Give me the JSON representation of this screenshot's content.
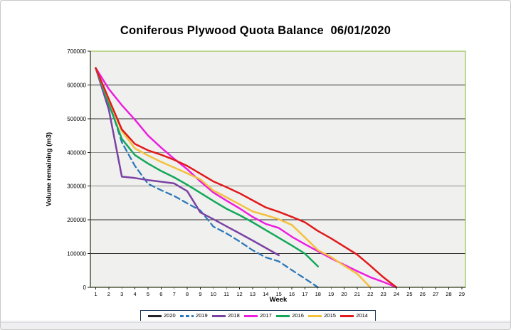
{
  "window": {
    "background": "#ffffff",
    "plot_background": "#f0f0ee",
    "plot_border_color": "#a5c964",
    "axis_color": "#1a1a1a",
    "gridline_color": "#2a2a2a",
    "legend_border_color": "#16365c"
  },
  "chart_data": {
    "type": "line",
    "title": "Coniferous Plywood Quota Balance  06/01/2020",
    "xlabel": "Week",
    "ylabel": "Volume remaining (m3)",
    "xlim": [
      0.5,
      29.5
    ],
    "ylim": [
      0,
      700000
    ],
    "y_tick_step": 100000,
    "y_ticks": [
      0,
      100000,
      200000,
      300000,
      400000,
      500000,
      600000,
      700000
    ],
    "x_ticks": [
      1,
      2,
      3,
      4,
      5,
      6,
      7,
      8,
      9,
      10,
      11,
      12,
      13,
      14,
      15,
      16,
      17,
      18,
      19,
      20,
      21,
      22,
      23,
      24,
      25,
      26,
      27,
      28,
      29
    ],
    "grid": "horizontal",
    "legend_position": "bottom",
    "x_is_week_starting_at": 1,
    "series": [
      {
        "name": "2020",
        "color": "#23252b",
        "dash": "solid",
        "values": [
          650000
        ]
      },
      {
        "name": "2019",
        "color": "#2e79b9",
        "dash": "dashed",
        "values": [
          650000,
          550000,
          430000,
          360000,
          307000,
          288000,
          271000,
          249000,
          228000,
          180000,
          160000,
          136000,
          110000,
          89000,
          77000,
          51000,
          26000,
          0
        ]
      },
      {
        "name": "2018",
        "color": "#7a42a4",
        "dash": "solid",
        "values": [
          650000,
          527000,
          328000,
          324000,
          318000,
          313000,
          308000,
          285000,
          222000,
          202000,
          181000,
          160000,
          139000,
          117000,
          95000
        ]
      },
      {
        "name": "2017",
        "color": "#ed1ee0",
        "dash": "solid",
        "values": [
          650000,
          588000,
          540000,
          497000,
          450000,
          414000,
          381000,
          350000,
          314000,
          281000,
          257000,
          234000,
          209000,
          188000,
          176000,
          150000,
          128000,
          107000,
          86000,
          67000,
          48000,
          30000,
          16000,
          0
        ]
      },
      {
        "name": "2016",
        "color": "#14a75a",
        "dash": "solid",
        "values": [
          650000,
          543000,
          440000,
          392000,
          367000,
          345000,
          326000,
          304000,
          280000,
          256000,
          233000,
          214000,
          193000,
          170000,
          147000,
          124000,
          100000,
          62000
        ]
      },
      {
        "name": "2015",
        "color": "#f3c13f",
        "dash": "solid",
        "values": [
          650000,
          556000,
          463000,
          412000,
          391000,
          372000,
          355000,
          338000,
          320000,
          287000,
          267000,
          246000,
          225000,
          214000,
          202000,
          185000,
          148000,
          110000,
          90000,
          64000,
          40000,
          0
        ]
      },
      {
        "name": "2014",
        "color": "#e11a1c",
        "dash": "solid",
        "values": [
          650000,
          558000,
          468000,
          425000,
          406000,
          393000,
          378000,
          360000,
          337000,
          314000,
          297000,
          279000,
          258000,
          237000,
          224000,
          209000,
          193000,
          167000,
          145000,
          121000,
          97000,
          64000,
          30000,
          0
        ]
      }
    ]
  }
}
